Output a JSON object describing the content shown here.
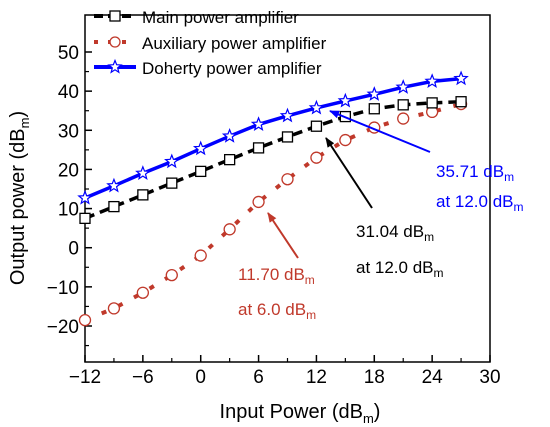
{
  "chart_data": {
    "type": "line",
    "xlabel": "Input Power (dB",
    "xlabel_sub": "m",
    "ylabel": "Output power (dB",
    "ylabel_sub": "m",
    "xlim": [
      -12,
      30
    ],
    "ylim": [
      -25,
      50
    ],
    "xticks": [
      -12,
      -6,
      0,
      6,
      12,
      18,
      24,
      30
    ],
    "xtick_labels": [
      "−12",
      "−6",
      "0",
      "6",
      "12",
      "18",
      "24",
      "30"
    ],
    "yticks": [
      -20,
      -10,
      0,
      10,
      20,
      30,
      40,
      50
    ],
    "ytick_labels": [
      "−20",
      "−10",
      "0",
      "10",
      "20",
      "30",
      "40",
      "50"
    ],
    "legend_position": "top-left",
    "series": [
      {
        "name": "Main power amplifier",
        "color": "#000000",
        "style": "dashed",
        "marker": "square",
        "x": [
          -12,
          -9,
          -6,
          -3,
          0,
          3,
          6,
          9,
          12,
          15,
          18,
          21,
          24,
          27
        ],
        "y": [
          7.5,
          10.5,
          13.5,
          16.5,
          19.5,
          22.5,
          25.5,
          28.3,
          31.04,
          33.5,
          35.5,
          36.5,
          37.0,
          37.3
        ]
      },
      {
        "name": "Auxiliary power amplifier",
        "color": "#c0392b",
        "style": "dashed",
        "marker": "circle",
        "x": [
          -12,
          -9,
          -6,
          -3,
          0,
          3,
          6,
          9,
          12,
          15,
          18,
          21,
          24,
          27
        ],
        "y": [
          -18.5,
          -15.5,
          -11.5,
          -7.0,
          -2.0,
          4.7,
          11.7,
          17.5,
          23.0,
          27.5,
          30.7,
          33.0,
          34.7,
          36.7
        ]
      },
      {
        "name": "Doherty power amplifier",
        "color": "#0000ff",
        "style": "solid",
        "marker": "star",
        "x": [
          -12,
          -9,
          -6,
          -3,
          0,
          3,
          6,
          9,
          12,
          15,
          18,
          21,
          24,
          27
        ],
        "y": [
          12.7,
          15.8,
          19.0,
          22.0,
          25.3,
          28.5,
          31.5,
          33.7,
          35.71,
          37.5,
          39.2,
          41.0,
          42.5,
          43.2
        ]
      }
    ],
    "annotations": [
      {
        "name": "doherty",
        "color": "#0000ff",
        "point": [
          12,
          35.71
        ],
        "line1": "35.71 dB",
        "line1_sub": "m",
        "line2": "at 12.0 dB",
        "line2_sub": "m"
      },
      {
        "name": "main",
        "color": "#000000",
        "point": [
          12,
          31.04
        ],
        "line1": "31.04 dB",
        "line1_sub": "m",
        "line2": "at 12.0 dB",
        "line2_sub": "m"
      },
      {
        "name": "auxiliary",
        "color": "#c0392b",
        "point": [
          6,
          11.7
        ],
        "line1": "11.70 dB",
        "line1_sub": "m",
        "line2": "at 6.0 dB",
        "line2_sub": "m"
      }
    ]
  }
}
